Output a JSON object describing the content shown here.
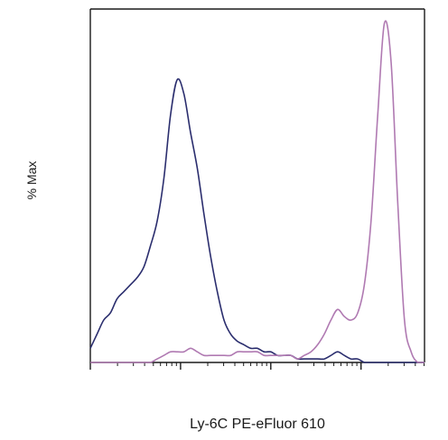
{
  "chart_data": {
    "type": "line",
    "title": "",
    "xlabel": "Ly-6C PE-eFluor 610",
    "ylabel": "% Max",
    "xlim": [
      0,
      100
    ],
    "ylim": [
      0,
      100
    ],
    "x_scale": "log (tick labels not printed)",
    "grid": false,
    "legend": "none",
    "x": [
      0,
      2,
      4,
      6,
      8,
      10,
      12,
      14,
      16,
      18,
      20,
      22,
      24,
      26,
      28,
      30,
      32,
      34,
      36,
      38,
      40,
      42,
      44,
      46,
      48,
      50,
      52,
      54,
      56,
      58,
      60,
      62,
      64,
      66,
      68,
      70,
      72,
      74,
      76,
      78,
      80,
      82,
      84,
      86,
      88,
      90,
      92,
      94,
      96,
      98,
      100
    ],
    "series": [
      {
        "color": "#2b2e6e",
        "values": [
          4,
          8,
          12,
          14,
          18,
          20,
          22,
          24,
          27,
          33,
          40,
          52,
          70,
          80,
          76,
          65,
          55,
          42,
          30,
          20,
          12,
          8,
          6,
          5,
          4,
          4,
          3,
          3,
          2,
          2,
          2,
          1,
          1,
          1,
          1,
          1,
          2,
          3,
          2,
          1,
          1,
          0,
          0,
          0,
          0,
          0,
          0,
          0,
          0,
          0,
          0
        ]
      },
      {
        "color": "#b07ab2",
        "values": [
          0,
          0,
          0,
          0,
          0,
          0,
          0,
          0,
          0,
          0,
          1,
          2,
          3,
          3,
          3,
          4,
          3,
          2,
          2,
          2,
          2,
          2,
          3,
          3,
          3,
          3,
          2,
          2,
          2,
          2,
          2,
          1,
          2,
          3,
          5,
          8,
          12,
          15,
          13,
          12,
          14,
          22,
          40,
          70,
          96,
          85,
          45,
          12,
          3,
          0,
          0
        ]
      }
    ]
  }
}
